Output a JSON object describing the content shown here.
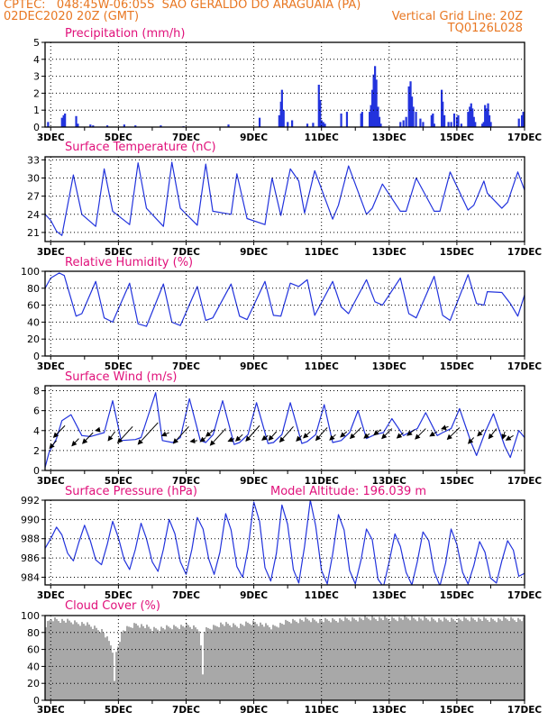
{
  "header": {
    "line1": "CPTEC:   048:45W-06:05S  SAO GERALDO DO ARAGUAIA (PA)",
    "line2_left": "02DEC2020 20Z (GMT)",
    "line2_right": "Vertical Grid Line: 20Z",
    "line3_right": "TQ0126L028"
  },
  "colors": {
    "header": "#e87722",
    "title": "#e0107a",
    "line": "#2233dd",
    "bar": "#2233dd",
    "cloud": "#a8a8a8",
    "arrow": "#000000"
  },
  "x_axis": {
    "day_start": 2.833,
    "day_end": 17.0,
    "tick_days": [
      3,
      5,
      7,
      9,
      11,
      13,
      15,
      17
    ],
    "tick_labels": [
      "3DEC",
      "5DEC",
      "7DEC",
      "9DEC",
      "11DEC",
      "13DEC",
      "15DEC",
      "17DEC"
    ]
  },
  "chart_data": [
    {
      "type": "bar",
      "id": "precip",
      "title": "Precipitation (mm/h)",
      "ylim": [
        0,
        5
      ],
      "yticks": [
        0,
        1,
        2,
        3,
        4,
        5
      ],
      "points": [
        [
          2.92,
          0.3
        ],
        [
          3.33,
          0.55
        ],
        [
          3.38,
          0.7
        ],
        [
          3.42,
          0.8
        ],
        [
          3.75,
          0.65
        ],
        [
          3.8,
          0.2
        ],
        [
          4.17,
          0.15
        ],
        [
          4.25,
          0.1
        ],
        [
          4.67,
          0.1
        ],
        [
          5.17,
          0.15
        ],
        [
          5.5,
          0.1
        ],
        [
          6.25,
          0.1
        ],
        [
          6.92,
          0.05
        ],
        [
          8.25,
          0.15
        ],
        [
          9.17,
          0.55
        ],
        [
          9.75,
          0.7
        ],
        [
          9.8,
          1.5
        ],
        [
          9.83,
          2.2
        ],
        [
          9.88,
          1.0
        ],
        [
          10.0,
          0.3
        ],
        [
          10.13,
          0.4
        ],
        [
          10.58,
          0.2
        ],
        [
          10.75,
          0.25
        ],
        [
          10.92,
          2.5
        ],
        [
          10.96,
          1.6
        ],
        [
          11.0,
          0.4
        ],
        [
          11.05,
          0.3
        ],
        [
          11.1,
          0.2
        ],
        [
          11.58,
          0.8
        ],
        [
          11.75,
          0.9
        ],
        [
          12.17,
          0.8
        ],
        [
          12.2,
          0.9
        ],
        [
          12.42,
          0.9
        ],
        [
          12.46,
          1.3
        ],
        [
          12.5,
          2.2
        ],
        [
          12.54,
          3.1
        ],
        [
          12.58,
          3.6
        ],
        [
          12.62,
          2.8
        ],
        [
          12.67,
          1.2
        ],
        [
          12.71,
          0.6
        ],
        [
          12.75,
          0.2
        ],
        [
          13.33,
          0.3
        ],
        [
          13.42,
          0.4
        ],
        [
          13.5,
          0.6
        ],
        [
          13.58,
          2.4
        ],
        [
          13.63,
          2.7
        ],
        [
          13.67,
          1.8
        ],
        [
          13.71,
          1.2
        ],
        [
          13.79,
          0.9
        ],
        [
          13.92,
          0.5
        ],
        [
          14.0,
          0.3
        ],
        [
          14.25,
          0.7
        ],
        [
          14.29,
          0.8
        ],
        [
          14.33,
          0.2
        ],
        [
          14.55,
          2.2
        ],
        [
          14.58,
          1.5
        ],
        [
          14.63,
          0.7
        ],
        [
          14.75,
          0.3
        ],
        [
          14.83,
          0.3
        ],
        [
          14.92,
          0.8
        ],
        [
          15.0,
          0.6
        ],
        [
          15.04,
          0.7
        ],
        [
          15.13,
          0.2
        ],
        [
          15.33,
          0.9
        ],
        [
          15.38,
          1.2
        ],
        [
          15.42,
          1.4
        ],
        [
          15.46,
          1.1
        ],
        [
          15.5,
          0.6
        ],
        [
          15.54,
          0.3
        ],
        [
          15.75,
          0.2
        ],
        [
          15.79,
          0.3
        ],
        [
          15.83,
          1.3
        ],
        [
          15.88,
          1.1
        ],
        [
          15.92,
          1.4
        ],
        [
          15.96,
          0.7
        ],
        [
          16.0,
          0.3
        ],
        [
          16.83,
          0.5
        ],
        [
          16.92,
          0.7
        ],
        [
          16.96,
          0.9
        ]
      ]
    },
    {
      "type": "line",
      "id": "temp",
      "title": "Surface Temperature (nC)",
      "ylim": [
        19.5,
        33.5
      ],
      "yticks": [
        21,
        24,
        27,
        30,
        33
      ],
      "x": [
        2.833,
        3.0,
        3.17,
        3.33,
        3.67,
        3.92,
        4.33,
        4.58,
        4.83,
        5.33,
        5.58,
        5.83,
        6.33,
        6.58,
        6.83,
        7.33,
        7.58,
        7.79,
        8.33,
        8.5,
        8.8,
        9.33,
        9.54,
        9.8,
        10.08,
        10.33,
        10.5,
        10.8,
        11.33,
        11.5,
        11.8,
        12.33,
        12.5,
        12.8,
        13.33,
        13.5,
        13.8,
        14.33,
        14.5,
        14.8,
        15.33,
        15.5,
        15.8,
        15.9,
        16.33,
        16.5,
        16.8,
        17.0
      ],
      "y": [
        24.0,
        23.0,
        21.2,
        20.5,
        30.5,
        24.0,
        22.0,
        31.5,
        24.5,
        22.3,
        32.5,
        25.0,
        22.0,
        32.6,
        25.0,
        22.2,
        32.3,
        24.5,
        24.0,
        30.7,
        23.3,
        22.3,
        30.0,
        23.8,
        31.5,
        29.5,
        24.2,
        31.2,
        23.2,
        25.5,
        32.0,
        24.0,
        25.0,
        29.0,
        24.5,
        24.5,
        30.0,
        24.5,
        24.5,
        31.0,
        24.7,
        25.5,
        29.5,
        27.5,
        25.0,
        26.0,
        31.0,
        28.0
      ]
    },
    {
      "type": "line",
      "id": "rh",
      "title": "Relative Humidity (%)",
      "ylim": [
        0,
        100
      ],
      "yticks": [
        0,
        20,
        40,
        60,
        80,
        100
      ],
      "x": [
        2.833,
        3.0,
        3.25,
        3.4,
        3.75,
        3.92,
        4.33,
        4.58,
        4.83,
        5.33,
        5.58,
        5.83,
        6.33,
        6.58,
        6.83,
        7.33,
        7.58,
        7.79,
        8.33,
        8.58,
        8.8,
        9.33,
        9.58,
        9.8,
        10.08,
        10.33,
        10.58,
        10.8,
        11.33,
        11.58,
        11.8,
        12.33,
        12.58,
        12.8,
        13.33,
        13.58,
        13.8,
        14.33,
        14.58,
        14.8,
        15.33,
        15.58,
        15.8,
        15.9,
        16.33,
        16.58,
        16.8,
        17.0
      ],
      "y": [
        80,
        92,
        98,
        95,
        47,
        50,
        88,
        45,
        40,
        86,
        38,
        35,
        85,
        40,
        36,
        82,
        42,
        45,
        85,
        47,
        43,
        88,
        48,
        47,
        86,
        82,
        90,
        48,
        88,
        58,
        50,
        90,
        64,
        60,
        92,
        50,
        45,
        94,
        48,
        42,
        96,
        62,
        60,
        76,
        75,
        62,
        47,
        72
      ]
    },
    {
      "type": "line",
      "id": "wind",
      "title": "Surface Wind (m/s)",
      "ylim": [
        0,
        8.5
      ],
      "yticks": [
        0,
        2,
        4,
        6,
        8
      ],
      "x": [
        2.833,
        2.95,
        3.17,
        3.33,
        3.6,
        3.92,
        4.17,
        4.58,
        4.83,
        5.08,
        5.5,
        5.67,
        6.1,
        6.3,
        6.6,
        6.83,
        7.1,
        7.42,
        7.58,
        7.8,
        8.08,
        8.42,
        8.58,
        8.83,
        9.08,
        9.42,
        9.58,
        9.83,
        10.08,
        10.42,
        10.58,
        10.83,
        11.08,
        11.33,
        11.58,
        11.83,
        12.08,
        12.33,
        12.58,
        12.83,
        13.08,
        13.42,
        13.58,
        13.83,
        14.08,
        14.42,
        14.58,
        14.83,
        15.08,
        15.42,
        15.58,
        15.83,
        16.08,
        16.42,
        16.58,
        16.83,
        17.0
      ],
      "y": [
        0.3,
        1.8,
        3.2,
        5.0,
        5.6,
        3.5,
        3.4,
        3.8,
        7.0,
        3.0,
        3.1,
        3.3,
        7.8,
        3.0,
        2.8,
        3.3,
        7.2,
        3.0,
        2.8,
        3.6,
        7.0,
        2.6,
        2.8,
        3.6,
        6.8,
        2.7,
        2.8,
        3.6,
        6.8,
        2.7,
        2.9,
        3.6,
        6.6,
        2.8,
        3.0,
        3.8,
        6.0,
        3.2,
        3.6,
        3.8,
        5.2,
        3.5,
        3.8,
        4.2,
        5.8,
        3.5,
        3.8,
        4.2,
        6.2,
        2.8,
        1.5,
        3.8,
        5.7,
        2.4,
        1.3,
        4.0,
        3.3
      ]
    },
    {
      "type": "line",
      "id": "pressure",
      "title": "Surface Pressure (hPa)",
      "subtitle": "Model Altitude: 196.039 m",
      "ylim": [
        983.2,
        992
      ],
      "yticks": [
        984,
        986,
        988,
        990,
        992
      ],
      "x": [
        2.833,
        3.0,
        3.17,
        3.33,
        3.5,
        3.67,
        3.83,
        4.0,
        4.17,
        4.33,
        4.5,
        4.67,
        4.83,
        5.0,
        5.17,
        5.33,
        5.5,
        5.67,
        5.83,
        6.0,
        6.17,
        6.33,
        6.5,
        6.67,
        6.83,
        7.0,
        7.17,
        7.33,
        7.5,
        7.67,
        7.83,
        8.0,
        8.17,
        8.33,
        8.5,
        8.67,
        8.83,
        9.0,
        9.17,
        9.33,
        9.5,
        9.67,
        9.83,
        10.0,
        10.17,
        10.33,
        10.5,
        10.67,
        10.83,
        11.0,
        11.17,
        11.33,
        11.5,
        11.67,
        11.83,
        12.0,
        12.17,
        12.33,
        12.5,
        12.67,
        12.83,
        13.0,
        13.17,
        13.33,
        13.5,
        13.67,
        13.83,
        14.0,
        14.17,
        14.33,
        14.5,
        14.67,
        14.83,
        15.0,
        15.17,
        15.33,
        15.5,
        15.67,
        15.83,
        16.0,
        16.17,
        16.33,
        16.5,
        16.67,
        16.83,
        17.0
      ],
      "y": [
        987.0,
        988.0,
        989.2,
        988.4,
        986.5,
        985.7,
        987.6,
        989.4,
        987.8,
        985.8,
        985.3,
        987.4,
        989.8,
        988.1,
        985.8,
        984.8,
        986.9,
        989.6,
        988.0,
        985.6,
        984.6,
        986.9,
        990.0,
        988.5,
        985.6,
        984.3,
        986.9,
        990.2,
        989.0,
        985.9,
        984.3,
        986.6,
        990.6,
        988.9,
        985.1,
        984.0,
        987.0,
        991.8,
        989.8,
        985.0,
        983.6,
        986.5,
        991.5,
        989.5,
        984.8,
        983.4,
        987.2,
        992.0,
        989.3,
        984.7,
        983.3,
        986.4,
        990.5,
        988.9,
        984.7,
        983.3,
        985.8,
        989.0,
        987.9,
        983.8,
        983.0,
        985.6,
        988.5,
        987.2,
        984.5,
        983.2,
        985.6,
        988.7,
        987.8,
        984.6,
        983.1,
        985.5,
        989.0,
        987.4,
        984.5,
        983.3,
        985.2,
        987.7,
        986.6,
        983.9,
        983.4,
        985.7,
        987.8,
        986.8,
        984.1,
        984.4
      ]
    },
    {
      "type": "bar",
      "id": "cloud",
      "title": "Cloud Cover (%)",
      "ylim": [
        0,
        100
      ],
      "yticks": [
        0,
        20,
        40,
        60,
        80,
        100
      ],
      "x": [
        2.833,
        3.0,
        3.5,
        4.0,
        4.5,
        4.8,
        4.85,
        4.9,
        5.0,
        5.1,
        5.5,
        6.0,
        6.5,
        7.0,
        7.4,
        7.45,
        7.5,
        8.0,
        8.5,
        9.0,
        9.5,
        10.0,
        10.5,
        11.0,
        11.5,
        12.0,
        12.5,
        13.0,
        13.5,
        14.0,
        14.5,
        15.0,
        15.5,
        16.0,
        16.5,
        17.0
      ],
      "y": [
        88,
        96,
        93,
        90,
        82,
        62,
        15,
        55,
        70,
        82,
        90,
        84,
        86,
        88,
        84,
        5,
        82,
        90,
        88,
        92,
        86,
        93,
        95,
        94,
        95,
        96,
        97,
        96,
        97,
        96,
        95,
        95,
        96,
        95,
        96,
        95
      ]
    },
    {
      "type": "vector",
      "id": "wind_vectors",
      "points": [
        [
          3.17,
          3.0,
          -1.5,
          -1.7
        ],
        [
          3.42,
          4.5,
          -2.5,
          -2.6
        ],
        [
          3.83,
          3.2,
          -1.5,
          -1.6
        ],
        [
          4.25,
          3.8,
          -2.3,
          -2.4
        ],
        [
          4.46,
          4.1,
          -1.0,
          -0.2
        ],
        [
          4.9,
          3.9,
          -1.5,
          -2.0
        ],
        [
          5.42,
          4.4,
          -3.3,
          -3.6
        ],
        [
          6.17,
          4.8,
          -4.4,
          -4.8
        ],
        [
          6.5,
          3.8,
          -1.6,
          -0.7
        ],
        [
          7.08,
          4.4,
          -3.4,
          -3.7
        ],
        [
          7.33,
          3.0,
          -1.5,
          -0.2
        ],
        [
          7.58,
          3.3,
          -1.2,
          -0.9
        ],
        [
          7.83,
          4.1,
          -1.8,
          -1.5
        ],
        [
          8.17,
          4.2,
          -3.4,
          -3.7
        ],
        [
          8.42,
          3.2,
          -1.3,
          -0.6
        ],
        [
          8.67,
          3.6,
          -1.5,
          -1.4
        ],
        [
          9.17,
          4.5,
          -3.0,
          -3.4
        ],
        [
          9.42,
          3.5,
          -1.3,
          -1.0
        ],
        [
          9.67,
          3.9,
          -1.7,
          -1.9
        ],
        [
          10.17,
          4.4,
          -3.0,
          -3.4
        ],
        [
          10.42,
          3.5,
          -1.2,
          -1.2
        ],
        [
          10.67,
          3.9,
          -1.5,
          -1.4
        ],
        [
          11.17,
          4.3,
          -2.5,
          -2.8
        ],
        [
          11.42,
          3.6,
          -1.3,
          -1.2
        ],
        [
          11.75,
          3.9,
          -1.4,
          -1.2
        ],
        [
          12.17,
          4.3,
          -2.4,
          -2.4
        ],
        [
          12.42,
          3.7,
          -1.2,
          -1.0
        ],
        [
          12.75,
          4.1,
          -1.5,
          -1.2
        ],
        [
          13.08,
          4.2,
          -2.2,
          -2.2
        ],
        [
          13.42,
          3.8,
          -1.4,
          -1.2
        ],
        [
          13.75,
          4.1,
          -1.6,
          -1.3
        ],
        [
          14.08,
          4.2,
          -2.3,
          -2.3
        ],
        [
          14.42,
          3.9,
          -1.6,
          -1.0
        ],
        [
          14.75,
          4.4,
          -1.5,
          -0.5
        ],
        [
          15.08,
          4.3,
          -2.7,
          -2.6
        ],
        [
          15.5,
          3.3,
          -1.2,
          -1.3
        ],
        [
          15.8,
          4.1,
          -1.4,
          -1.4
        ],
        [
          16.17,
          4.2,
          -1.7,
          -2.2
        ],
        [
          16.42,
          3.9,
          -0.5,
          -1.6
        ],
        [
          16.67,
          3.5,
          -1.6,
          -1.0
        ]
      ]
    }
  ]
}
